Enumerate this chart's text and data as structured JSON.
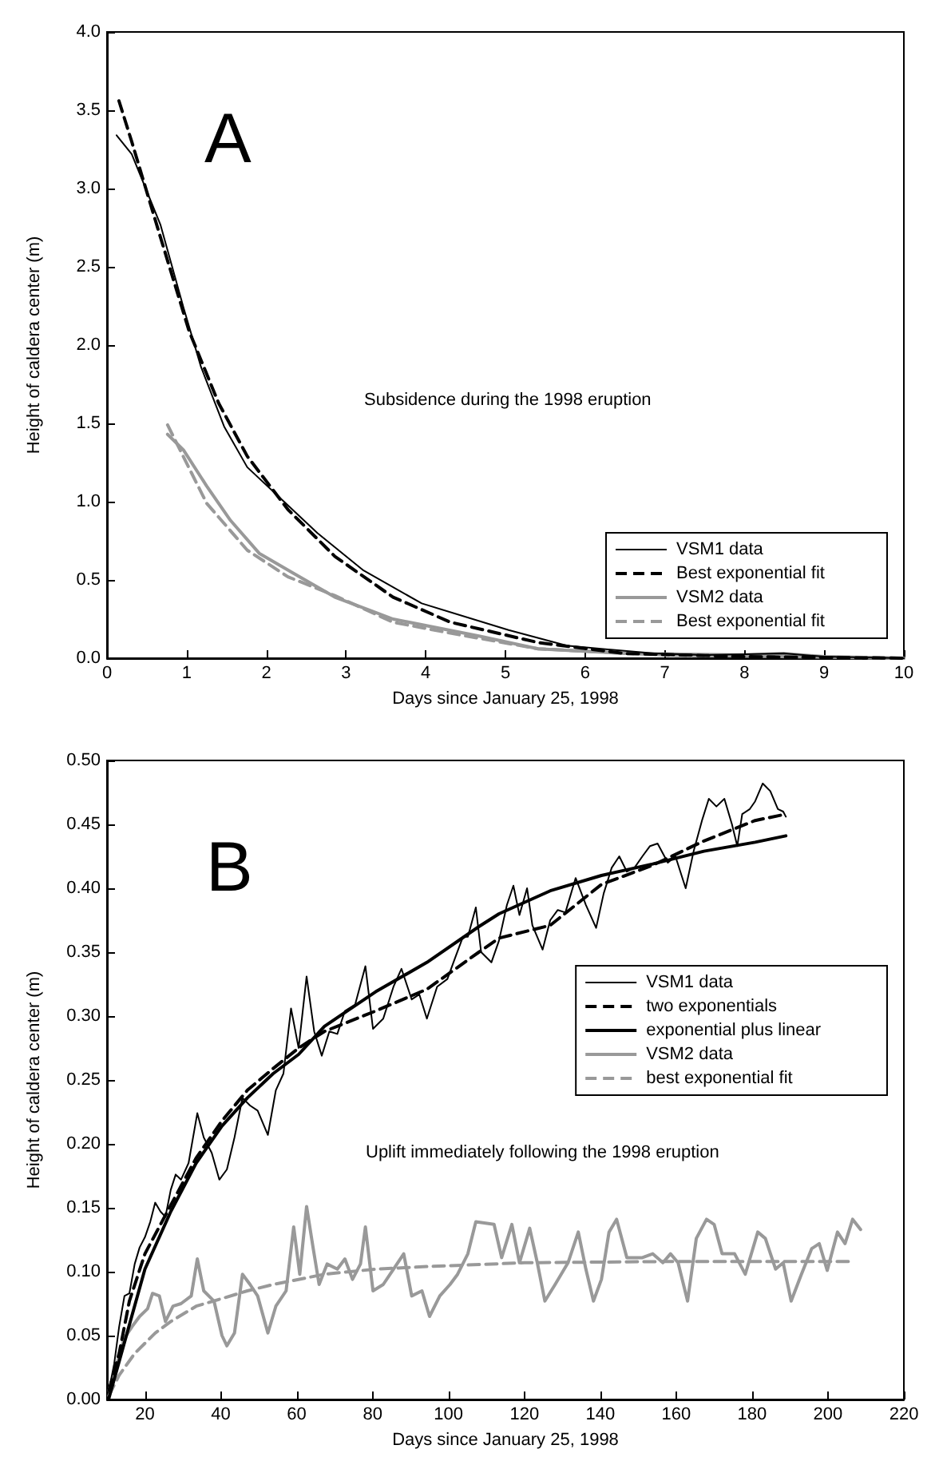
{
  "chart_data": [
    {
      "type": "line",
      "xlabel": "Days since January 25, 1998",
      "ylabel": "Height of caldera center (m)",
      "annotations": [
        "A",
        "Subsidence during the 1998 eruption"
      ],
      "xlim": [
        0,
        10
      ],
      "ylim": [
        0,
        4
      ],
      "xticks": [
        0,
        1,
        2,
        3,
        4,
        5,
        6,
        7,
        8,
        9,
        10
      ],
      "yticks": [
        {
          "value": 0,
          "label": "0.0"
        },
        {
          "value": 0.5,
          "label": "0.5"
        },
        {
          "value": 1,
          "label": "1.0"
        },
        {
          "value": 1.5,
          "label": "1.5"
        },
        {
          "value": 2,
          "label": "2.0"
        },
        {
          "value": 2.5,
          "label": "2.5"
        },
        {
          "value": 3,
          "label": "3.0"
        },
        {
          "value": 3.5,
          "label": "3.5"
        },
        {
          "value": 4,
          "label": "4.0"
        }
      ],
      "grid": false,
      "legend": "bottom right",
      "marker": "none",
      "series": [
        {
          "name": "VSM1 data",
          "color": "#000000",
          "line_style": "solid",
          "x": [
            0.12,
            0.31,
            0.67,
            0.96,
            1.18,
            1.47,
            1.76,
            2.2,
            2.64,
            3.22,
            3.95,
            5.04,
            5.77,
            6.87,
            7.5,
            8.5,
            9,
            10
          ],
          "values": [
            3.34,
            3.22,
            2.77,
            2.24,
            1.86,
            1.48,
            1.22,
            1.01,
            0.8,
            0.56,
            0.35,
            0.18,
            0.08,
            0.03,
            0.02,
            0.03,
            0.01,
            0
          ]
        },
        {
          "name": "Best exponential fit",
          "color": "#000000",
          "line_style": "dashed",
          "x": [
            0.15,
            0.31,
            0.67,
            1.03,
            1.4,
            1.76,
            2.27,
            2.86,
            3.59,
            4.31,
            5.41,
            6.5,
            8,
            10
          ],
          "values": [
            3.56,
            3.3,
            2.69,
            2.09,
            1.63,
            1.29,
            0.95,
            0.65,
            0.39,
            0.23,
            0.1,
            0.03,
            0.01,
            0
          ]
        },
        {
          "name": "VSM2 data",
          "color": "#999999",
          "line_style": "solid",
          "x": [
            0.76,
            0.96,
            1.25,
            1.55,
            1.91,
            2.35,
            2.86,
            3.59,
            4.68,
            5.41,
            6.5,
            8,
            8.5,
            9,
            10
          ],
          "values": [
            1.43,
            1.33,
            1.1,
            0.88,
            0.67,
            0.54,
            0.39,
            0.25,
            0.14,
            0.06,
            0.03,
            0.02,
            0.03,
            0.01,
            0
          ]
        },
        {
          "name": "Best exponential fit",
          "color": "#999999",
          "line_style": "dashed",
          "x": [
            0.76,
            1.25,
            1.76,
            2.27,
            2.86,
            3.59,
            4.31,
            5.41,
            7,
            10
          ],
          "values": [
            1.49,
            0.99,
            0.69,
            0.52,
            0.4,
            0.23,
            0.16,
            0.06,
            0.02,
            0
          ]
        }
      ]
    },
    {
      "type": "line",
      "xlabel": "Days since January 25, 1998",
      "ylabel": "Height of caldera center (m)",
      "annotations": [
        "B",
        "Uplift immediately following the 1998 eruption"
      ],
      "xlim": [
        10,
        220
      ],
      "ylim": [
        0,
        0.5
      ],
      "xticks": [
        20,
        40,
        60,
        80,
        100,
        120,
        140,
        160,
        180,
        200,
        220
      ],
      "yticks": [
        {
          "value": 0,
          "label": "0.00"
        },
        {
          "value": 0.05,
          "label": "0.05"
        },
        {
          "value": 0.1,
          "label": "0.10"
        },
        {
          "value": 0.15,
          "label": "0.15"
        },
        {
          "value": 0.2,
          "label": "0.20"
        },
        {
          "value": 0.25,
          "label": "0.25"
        },
        {
          "value": 0.3,
          "label": "0.30"
        },
        {
          "value": 0.35,
          "label": "0.35"
        },
        {
          "value": 0.4,
          "label": "0.40"
        },
        {
          "value": 0.45,
          "label": "0.45"
        },
        {
          "value": 0.5,
          "label": "0.50"
        }
      ],
      "grid": false,
      "legend": "right",
      "marker": "none",
      "series": [
        {
          "name": "VSM1 data",
          "color": "#000000",
          "line_style": "solid",
          "x": [
            10.5,
            11.9,
            13.2,
            14.6,
            15.9,
            17.3,
            18.6,
            20,
            21.4,
            22.7,
            24.1,
            25.4,
            26.8,
            28.1,
            29.5,
            31.5,
            33.8,
            35.5,
            37.6,
            39.6,
            41.6,
            43.6,
            45.7,
            47.7,
            49.7,
            52.4,
            54.5,
            56.5,
            58.5,
            60.5,
            62.6,
            64.6,
            66.6,
            68.6,
            70.7,
            72.7,
            75.4,
            78.1,
            80.1,
            82.8,
            85.5,
            87.6,
            90.3,
            92.3,
            94.3,
            97,
            99.7,
            101.8,
            103.8,
            105.1,
            107.2,
            108.6,
            111.3,
            113.3,
            115.4,
            117.1,
            118.7,
            120.7,
            122.1,
            124.8,
            126.8,
            128.8,
            130.8,
            133.5,
            136.2,
            138.9,
            140.9,
            143,
            145,
            147,
            149,
            151.1,
            153.1,
            155.1,
            157.8,
            159.8,
            162.5,
            164.6,
            166.9,
            168.6,
            170.6,
            172.7,
            174.7,
            176.1,
            177.4,
            179.4,
            180.8,
            182.8,
            184.8,
            186.8,
            188.2,
            188.9
          ],
          "values": [
            0.007,
            0.028,
            0.057,
            0.081,
            0.083,
            0.106,
            0.119,
            0.127,
            0.139,
            0.154,
            0.147,
            0.143,
            0.164,
            0.176,
            0.172,
            0.185,
            0.224,
            0.205,
            0.193,
            0.172,
            0.18,
            0.205,
            0.236,
            0.23,
            0.226,
            0.207,
            0.242,
            0.255,
            0.306,
            0.275,
            0.331,
            0.288,
            0.269,
            0.288,
            0.286,
            0.304,
            0.309,
            0.339,
            0.29,
            0.298,
            0.323,
            0.337,
            0.313,
            0.317,
            0.298,
            0.323,
            0.329,
            0.346,
            0.362,
            0.362,
            0.385,
            0.35,
            0.342,
            0.359,
            0.387,
            0.402,
            0.379,
            0.4,
            0.371,
            0.352,
            0.375,
            0.383,
            0.381,
            0.408,
            0.387,
            0.369,
            0.396,
            0.416,
            0.425,
            0.413,
            0.416,
            0.425,
            0.433,
            0.435,
            0.42,
            0.425,
            0.4,
            0.429,
            0.454,
            0.47,
            0.464,
            0.47,
            0.45,
            0.433,
            0.458,
            0.462,
            0.468,
            0.482,
            0.476,
            0.462,
            0.46,
            0.456
          ]
        },
        {
          "name": "two exponentials",
          "color": "#000000",
          "line_style": "dashed",
          "x": [
            10.5,
            13.2,
            15.9,
            20,
            26.8,
            33.5,
            40.3,
            47,
            53.8,
            60.5,
            67.3,
            80.8,
            94.3,
            108,
            113.3,
            126.8,
            140.3,
            153.8,
            167.3,
            180.8,
            188.9
          ],
          "values": [
            0.007,
            0.036,
            0.077,
            0.114,
            0.152,
            0.189,
            0.218,
            0.242,
            0.259,
            0.275,
            0.288,
            0.304,
            0.321,
            0.35,
            0.361,
            0.371,
            0.403,
            0.418,
            0.437,
            0.453,
            0.458
          ]
        },
        {
          "name": "exponential plus linear",
          "color": "#000000",
          "line_style": "solid",
          "x": [
            10.5,
            20,
            26.8,
            33.5,
            40.3,
            47,
            53.8,
            60.5,
            67.3,
            80.8,
            94.3,
            108,
            113.3,
            126.8,
            140.3,
            153.8,
            167.3,
            180.8,
            188.9
          ],
          "values": [
            0.001,
            0.102,
            0.147,
            0.185,
            0.214,
            0.236,
            0.255,
            0.27,
            0.292,
            0.319,
            0.342,
            0.37,
            0.38,
            0.398,
            0.41,
            0.419,
            0.429,
            0.436,
            0.441
          ]
        },
        {
          "name": "VSM2 data",
          "color": "#999999",
          "line_style": "solid",
          "x": [
            10.5,
            12.6,
            14.6,
            16.6,
            18.6,
            20.7,
            22,
            23.8,
            25.4,
            27.4,
            29.5,
            32.2,
            33.8,
            35.5,
            38.2,
            40.3,
            41.6,
            43.6,
            45.7,
            47.7,
            49.7,
            52.4,
            54.5,
            57.2,
            59.2,
            60.8,
            62.6,
            64.3,
            65.9,
            68,
            70.7,
            72.7,
            74.7,
            76.8,
            78.1,
            80.1,
            82.8,
            85.5,
            88.2,
            90.3,
            93,
            95,
            97.7,
            100.4,
            102.4,
            105.1,
            107.2,
            112,
            114,
            116.7,
            118.7,
            121.4,
            123.4,
            125.4,
            128.1,
            131.5,
            134.2,
            136.2,
            138.2,
            140.3,
            142.3,
            144.3,
            147,
            151.1,
            153.8,
            156.5,
            158.5,
            160.5,
            163,
            165.3,
            168,
            170,
            172.1,
            175.4,
            178.2,
            181.5,
            183.5,
            186.2,
            188.2,
            190.3,
            193,
            195.7,
            197.7,
            199.8,
            202.5,
            204.5,
            206.5,
            208.6
          ],
          "values": [
            0.007,
            0.028,
            0.048,
            0.057,
            0.065,
            0.071,
            0.083,
            0.081,
            0.061,
            0.073,
            0.075,
            0.081,
            0.11,
            0.085,
            0.077,
            0.05,
            0.042,
            0.052,
            0.098,
            0.09,
            0.081,
            0.052,
            0.073,
            0.085,
            0.135,
            0.098,
            0.151,
            0.119,
            0.09,
            0.106,
            0.102,
            0.11,
            0.094,
            0.106,
            0.135,
            0.085,
            0.09,
            0.102,
            0.114,
            0.081,
            0.085,
            0.065,
            0.081,
            0.09,
            0.098,
            0.114,
            0.139,
            0.137,
            0.111,
            0.137,
            0.107,
            0.134,
            0.107,
            0.077,
            0.09,
            0.107,
            0.131,
            0.102,
            0.077,
            0.094,
            0.131,
            0.141,
            0.111,
            0.111,
            0.114,
            0.107,
            0.114,
            0.107,
            0.077,
            0.126,
            0.141,
            0.137,
            0.114,
            0.114,
            0.098,
            0.131,
            0.126,
            0.102,
            0.107,
            0.077,
            0.098,
            0.118,
            0.122,
            0.101,
            0.131,
            0.122,
            0.141,
            0.133
          ]
        },
        {
          "name": "best exponential fit",
          "color": "#999999",
          "line_style": "dashed",
          "x": [
            10.5,
            13.2,
            17.3,
            22.7,
            26.8,
            33.5,
            40.3,
            47,
            53.8,
            67.3,
            80.8,
            94.3,
            120,
            160,
            206
          ],
          "values": [
            0.003,
            0.019,
            0.036,
            0.052,
            0.061,
            0.073,
            0.079,
            0.085,
            0.09,
            0.098,
            0.102,
            0.104,
            0.107,
            0.108,
            0.108
          ]
        }
      ]
    }
  ]
}
